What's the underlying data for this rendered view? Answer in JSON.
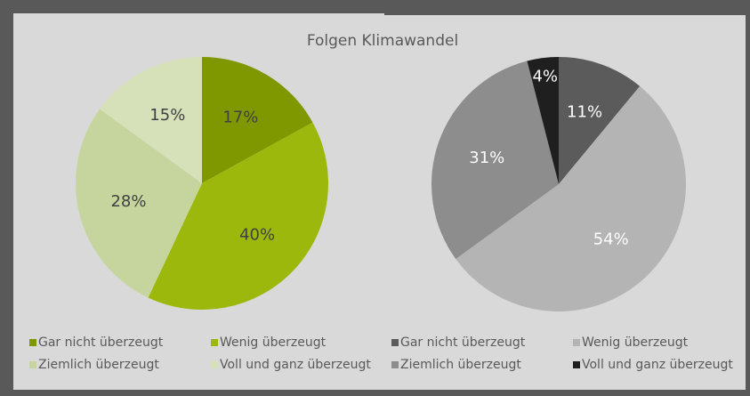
{
  "chart_data": [
    {
      "type": "pie",
      "title": "Folgen Klimawandel",
      "categories": [
        "Gar nicht überzeugt",
        "Wenig überzeugt",
        "Ziemlich überzeugt",
        "Voll und ganz überzeugt"
      ],
      "values": [
        17,
        40,
        28,
        15
      ],
      "value_labels": [
        "17%",
        "40%",
        "28%",
        "15%"
      ],
      "colors": [
        "#7f9800",
        "#9db80c",
        "#c6d59e",
        "#d7e1b9"
      ],
      "label_color": "#404040"
    },
    {
      "type": "pie",
      "categories": [
        "Gar nicht überzeugt",
        "Wenig überzeugt",
        "Ziemlich überzeugt",
        "Voll und ganz überzeugt"
      ],
      "values": [
        11,
        54,
        31,
        4
      ],
      "value_labels": [
        "11%",
        "54%",
        "31%",
        "4%"
      ],
      "colors": [
        "#5b5b5b",
        "#b4b4b4",
        "#8d8d8d",
        "#1f1f1f"
      ],
      "label_color": "#ffffff"
    }
  ]
}
